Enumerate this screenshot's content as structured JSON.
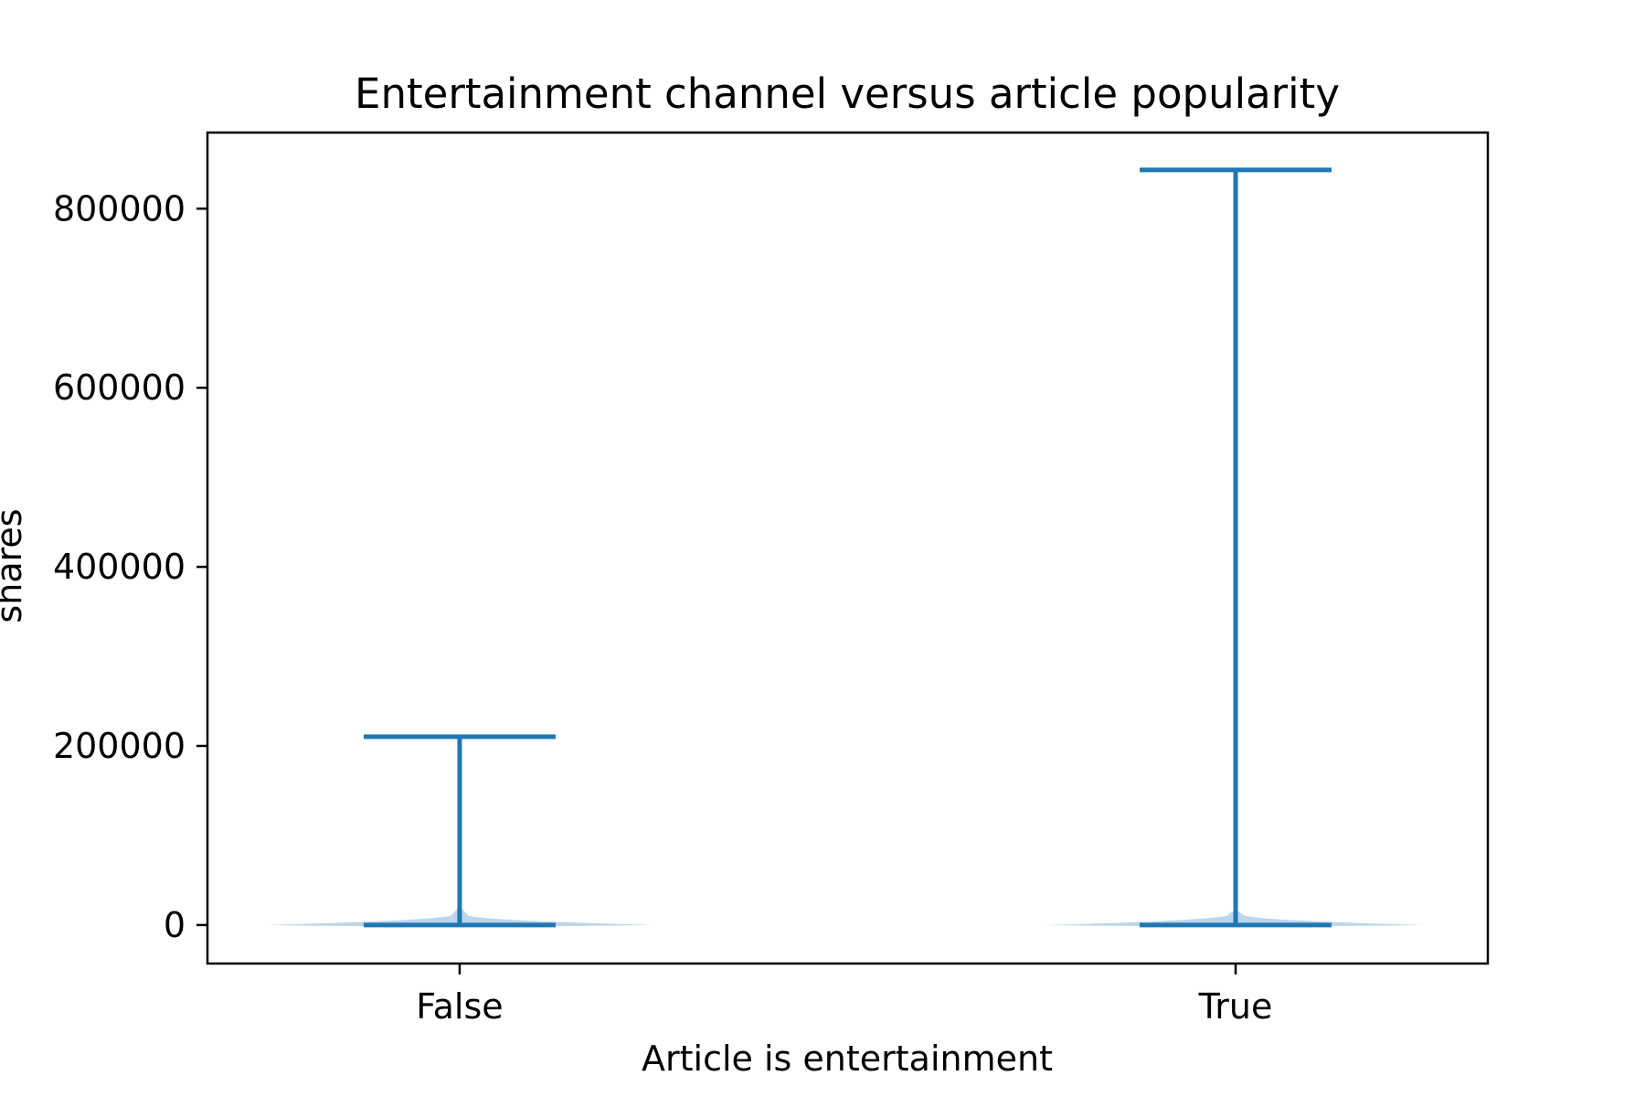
{
  "chart_data": {
    "type": "violin",
    "title": "Entertainment channel versus article popularity",
    "xlabel": "Article is entertainment",
    "ylabel": "shares",
    "categories": [
      "False",
      "True"
    ],
    "ylim": [
      -43000,
      885000
    ],
    "yticks": [
      0,
      200000,
      400000,
      600000,
      800000
    ],
    "ytick_labels": [
      "0",
      "200000",
      "400000",
      "600000",
      "800000"
    ],
    "grid": false,
    "color": "#1f77b4",
    "violin_fill": "#a6c8e3",
    "series": [
      {
        "category": "False",
        "min": 1,
        "max": 210300,
        "density_peak": 1400,
        "density_width": 1.0
      },
      {
        "category": "True",
        "min": 22,
        "max": 843300,
        "density_peak": 1100,
        "density_width": 0.98
      }
    ]
  }
}
